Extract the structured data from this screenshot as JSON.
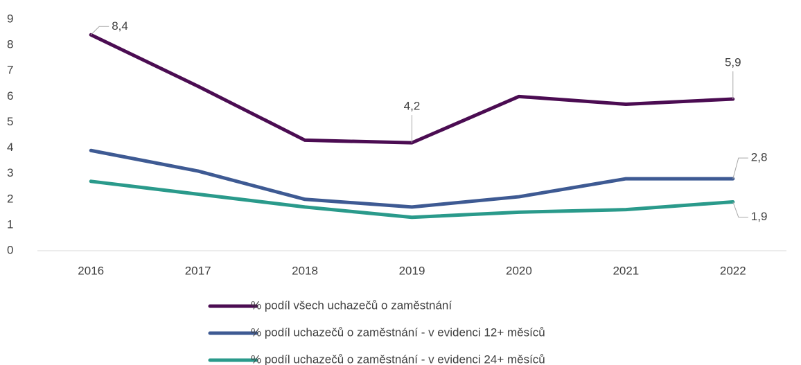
{
  "chart_data": {
    "type": "line",
    "categories": [
      "2016",
      "2017",
      "2018",
      "2019",
      "2020",
      "2021",
      "2022"
    ],
    "series": [
      {
        "name": "% podíl všech uchazečů o zaměstnání",
        "color": "#4b0c52",
        "values": [
          8.4,
          6.4,
          4.3,
          4.2,
          6.0,
          5.7,
          5.9
        ],
        "value_labels": [
          "8,4",
          null,
          null,
          "4,2",
          null,
          null,
          "5,9"
        ]
      },
      {
        "name": "% podíl uchazečů o zaměstnání - v evidenci 12+ měsíců",
        "color": "#3e5a93",
        "values": [
          3.9,
          3.1,
          2.0,
          1.7,
          2.1,
          2.8,
          2.8
        ],
        "value_labels": [
          null,
          null,
          null,
          null,
          null,
          null,
          "2,8"
        ]
      },
      {
        "name": "% podíl uchazečů o zaměstnání - v evidenci 24+ měsíců",
        "color": "#2a9a8b",
        "values": [
          2.7,
          2.2,
          1.7,
          1.3,
          1.5,
          1.6,
          1.9
        ],
        "value_labels": [
          null,
          null,
          null,
          null,
          null,
          null,
          "1,9"
        ]
      }
    ],
    "ylim": [
      0,
      9
    ],
    "yticks": [
      0,
      1,
      2,
      3,
      4,
      5,
      6,
      7,
      8,
      9
    ],
    "grid": false
  }
}
